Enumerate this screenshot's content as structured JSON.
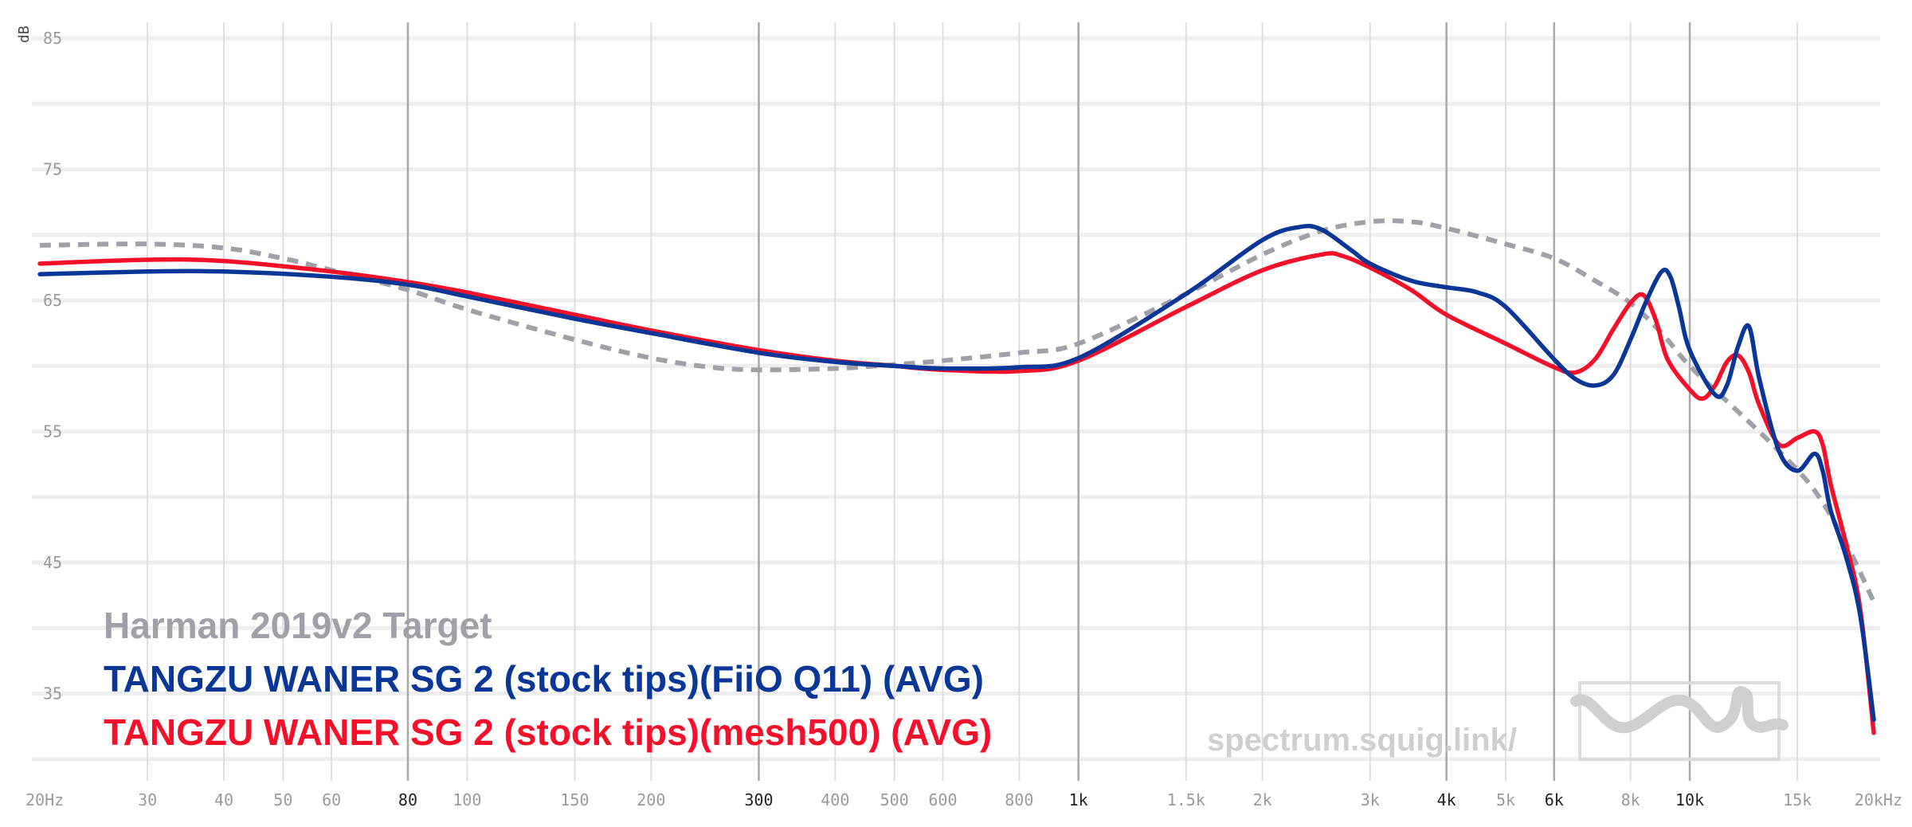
{
  "chart_data": {
    "type": "line",
    "ylabel": "dB",
    "xscale": "log",
    "xlim": [
      20,
      20000
    ],
    "ylim": [
      30,
      87
    ],
    "y_ticks": [
      85,
      75,
      65,
      55,
      45,
      35
    ],
    "x_ticks": [
      {
        "value": 20,
        "label": "20Hz",
        "major": false
      },
      {
        "value": 30,
        "label": "30",
        "major": false
      },
      {
        "value": 40,
        "label": "40",
        "major": false
      },
      {
        "value": 50,
        "label": "50",
        "major": false
      },
      {
        "value": 60,
        "label": "60",
        "major": false
      },
      {
        "value": 80,
        "label": "80",
        "major": true
      },
      {
        "value": 100,
        "label": "100",
        "major": false
      },
      {
        "value": 150,
        "label": "150",
        "major": false
      },
      {
        "value": 200,
        "label": "200",
        "major": false
      },
      {
        "value": 300,
        "label": "300",
        "major": true
      },
      {
        "value": 400,
        "label": "400",
        "major": false
      },
      {
        "value": 500,
        "label": "500",
        "major": false
      },
      {
        "value": 600,
        "label": "600",
        "major": false
      },
      {
        "value": 800,
        "label": "800",
        "major": false
      },
      {
        "value": 1000,
        "label": "1k",
        "major": true
      },
      {
        "value": 1500,
        "label": "1.5k",
        "major": false
      },
      {
        "value": 2000,
        "label": "2k",
        "major": false
      },
      {
        "value": 3000,
        "label": "3k",
        "major": false
      },
      {
        "value": 4000,
        "label": "4k",
        "major": true
      },
      {
        "value": 5000,
        "label": "5k",
        "major": false
      },
      {
        "value": 6000,
        "label": "6k",
        "major": true
      },
      {
        "value": 8000,
        "label": "8k",
        "major": false
      },
      {
        "value": 10000,
        "label": "10k",
        "major": true
      },
      {
        "value": 15000,
        "label": "15k",
        "major": false
      },
      {
        "value": 20000,
        "label": "20kHz",
        "major": false
      }
    ],
    "series": [
      {
        "name": "Harman 2019v2 Target",
        "color": "#a0a0a8",
        "dashed": true,
        "x": [
          20,
          30,
          40,
          50,
          60,
          80,
          100,
          150,
          200,
          250,
          300,
          400,
          500,
          600,
          800,
          1000,
          1500,
          2000,
          2500,
          3000,
          3500,
          4000,
          5000,
          6000,
          7000,
          8000,
          9000,
          10000,
          12000,
          14000,
          16000,
          18000,
          20000
        ],
        "y": [
          69.2,
          69.3,
          69.0,
          68.2,
          67.3,
          65.8,
          64.3,
          62.0,
          60.6,
          59.9,
          59.7,
          59.8,
          60.1,
          60.4,
          61.0,
          61.7,
          65.5,
          68.5,
          70.3,
          71.0,
          71.0,
          70.5,
          69.3,
          68.2,
          66.5,
          64.8,
          62.5,
          60.0,
          56.5,
          53.5,
          50.5,
          46.5,
          42.0
        ]
      },
      {
        "name": "TANGZU WANER SG 2 (stock tips)(FiiO Q11) (AVG)",
        "color": "#0a3797",
        "dashed": false,
        "x": [
          20,
          30,
          40,
          60,
          80,
          100,
          150,
          200,
          300,
          400,
          500,
          600,
          800,
          1000,
          1500,
          2000,
          2300,
          2500,
          2800,
          3000,
          3500,
          4000,
          4500,
          5000,
          6000,
          6500,
          7000,
          7500,
          8000,
          8500,
          9000,
          9300,
          9600,
          10000,
          11000,
          11500,
          12000,
          12500,
          13000,
          14000,
          15000,
          16000,
          16500,
          17000,
          18000,
          19000,
          20000
        ],
        "y": [
          67.0,
          67.2,
          67.2,
          66.8,
          66.2,
          65.3,
          63.6,
          62.5,
          61.0,
          60.3,
          60.0,
          59.8,
          59.9,
          60.6,
          65.5,
          69.6,
          70.6,
          70.4,
          68.8,
          67.8,
          66.5,
          66.0,
          65.6,
          64.5,
          60.5,
          59.0,
          58.5,
          59.3,
          62.0,
          65.0,
          67.2,
          66.8,
          64.5,
          61.2,
          57.8,
          58.5,
          61.5,
          63.0,
          59.0,
          53.5,
          52.0,
          53.3,
          52.0,
          49.0,
          45.5,
          41.0,
          33.0
        ]
      },
      {
        "name": "TANGZU WANER SG 2 (stock tips)(mesh500) (AVG)",
        "color": "#f5102a",
        "dashed": false,
        "x": [
          20,
          30,
          40,
          60,
          80,
          100,
          150,
          200,
          300,
          400,
          500,
          600,
          800,
          1000,
          1500,
          2000,
          2500,
          2700,
          3000,
          3500,
          4000,
          5000,
          6000,
          6500,
          7000,
          7500,
          8000,
          8400,
          8800,
          9200,
          10000,
          10500,
          11000,
          11500,
          12000,
          12500,
          13000,
          14000,
          15000,
          16000,
          16500,
          17000,
          18000,
          19000,
          20000
        ],
        "y": [
          67.8,
          68.1,
          68.0,
          67.2,
          66.4,
          65.6,
          63.9,
          62.7,
          61.2,
          60.4,
          60.0,
          59.7,
          59.6,
          60.4,
          64.5,
          67.3,
          68.5,
          68.4,
          67.5,
          65.8,
          63.9,
          61.7,
          59.9,
          59.5,
          60.5,
          62.8,
          64.8,
          65.4,
          63.5,
          60.5,
          58.2,
          57.5,
          58.5,
          60.3,
          60.8,
          59.5,
          57.0,
          54.0,
          54.5,
          55.0,
          54.0,
          51.0,
          46.5,
          41.5,
          32.0
        ]
      }
    ],
    "watermark": "spectrum.squig.link/"
  }
}
